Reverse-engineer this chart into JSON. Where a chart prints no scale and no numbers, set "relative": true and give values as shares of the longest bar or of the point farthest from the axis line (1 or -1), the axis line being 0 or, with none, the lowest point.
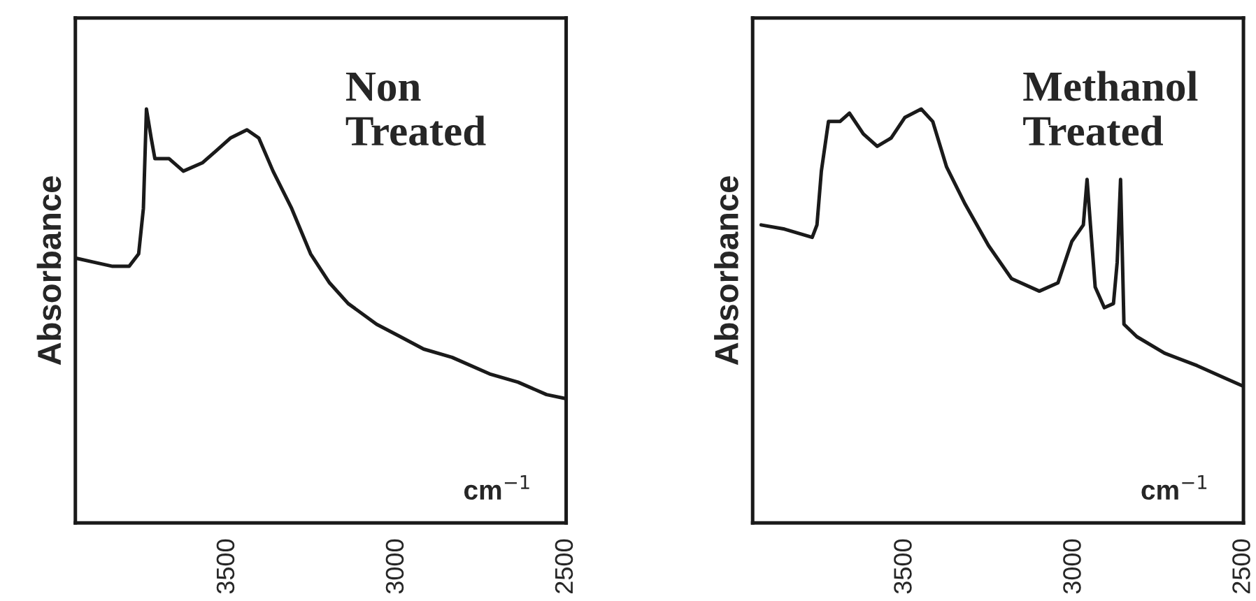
{
  "chart_data": [
    {
      "type": "line",
      "ylabel": "Absorbance",
      "relative": true,
      "xlim": [
        3950,
        2500
      ],
      "xticks": [
        3500,
        3000,
        2500
      ],
      "grid": false,
      "legend": false,
      "annotations": [
        "Non\nTreated",
        "cm$^{−1}$"
      ],
      "series": [
        {
          "color": "#1a1a1a",
          "x": [
            3950,
            3896,
            3840,
            3791,
            3763,
            3749,
            3740,
            3726,
            3715,
            3673,
            3631,
            3575,
            3533,
            3492,
            3443,
            3408,
            3366,
            3311,
            3255,
            3199,
            3144,
            3060,
            2990,
            2921,
            2837,
            2726,
            2642,
            2558,
            2500
          ],
          "values": [
            0.64,
            0.63,
            0.62,
            0.62,
            0.65,
            0.76,
            1.0,
            0.93,
            0.88,
            0.88,
            0.85,
            0.87,
            0.9,
            0.93,
            0.95,
            0.93,
            0.85,
            0.76,
            0.65,
            0.58,
            0.53,
            0.48,
            0.45,
            0.42,
            0.4,
            0.36,
            0.34,
            0.31,
            0.3
          ]
        }
      ]
    },
    {
      "type": "line",
      "ylabel": "Absorbance",
      "relative": true,
      "xlim": [
        3950,
        2500
      ],
      "xticks": [
        3500,
        3000,
        2500
      ],
      "grid": false,
      "legend": false,
      "annotations": [
        "Methanol\nTreated",
        "cm$^{−1}$"
      ],
      "series": [
        {
          "color": "#1a1a1a",
          "x": [
            3925,
            3856,
            3774,
            3760,
            3747,
            3726,
            3692,
            3664,
            3623,
            3582,
            3541,
            3500,
            3452,
            3418,
            3377,
            3322,
            3253,
            3185,
            3103,
            3048,
            3007,
            2973,
            2962,
            2952,
            2938,
            2911,
            2884,
            2873,
            2863,
            2853,
            2815,
            2733,
            2637,
            2555,
            2500
          ],
          "values": [
            0.72,
            0.71,
            0.69,
            0.72,
            0.85,
            0.97,
            0.97,
            0.99,
            0.94,
            0.91,
            0.93,
            0.98,
            1.0,
            0.97,
            0.86,
            0.77,
            0.67,
            0.59,
            0.56,
            0.58,
            0.68,
            0.72,
            0.83,
            0.72,
            0.57,
            0.52,
            0.53,
            0.63,
            0.83,
            0.48,
            0.45,
            0.41,
            0.38,
            0.35,
            0.33
          ]
        }
      ]
    }
  ]
}
